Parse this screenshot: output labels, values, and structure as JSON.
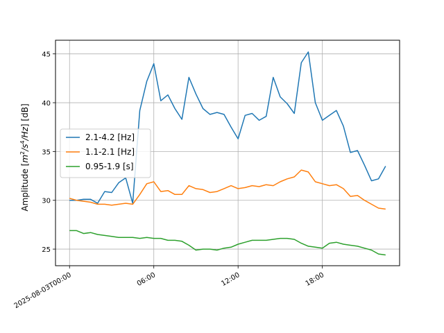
{
  "chart_data": {
    "type": "line",
    "xlabel": "",
    "ylabel": "Amplitude [$m^2/s^4/Hz$] [dB]",
    "ylabel_parts": {
      "pre": "Amplitude [",
      "m": "m",
      "two": "2",
      "s": "/s",
      "four": "4",
      "hz": "/Hz",
      "post": "] [dB]"
    },
    "xlim_hours": [
      -1.0,
      23.5
    ],
    "ylim": [
      23.3,
      46.4
    ],
    "grid": true,
    "legend_position": "center-left",
    "x_ticks": [
      {
        "hour": 0,
        "label": "2025-08-03T00:00"
      },
      {
        "hour": 6,
        "label": "06:00"
      },
      {
        "hour": 12,
        "label": "12:00"
      },
      {
        "hour": 18,
        "label": "18:00"
      }
    ],
    "y_ticks": [
      25,
      30,
      35,
      40,
      45
    ],
    "x_hours": [
      0,
      0.5,
      1,
      1.5,
      2,
      2.5,
      3,
      3.5,
      4,
      4.5,
      5,
      5.5,
      6,
      6.5,
      7,
      7.5,
      8,
      8.5,
      9,
      9.5,
      10,
      10.5,
      11,
      11.5,
      12,
      12.5,
      13,
      13.5,
      14,
      14.5,
      15,
      15.5,
      16,
      16.5,
      17,
      17.5,
      18,
      18.5,
      19,
      19.5,
      20,
      20.5,
      21,
      21.5,
      22,
      22.5
    ],
    "series": [
      {
        "name": "2.1-4.2 [Hz]",
        "color": "#1f77b4",
        "values": [
          30.0,
          30.0,
          30.1,
          30.1,
          29.7,
          30.9,
          30.8,
          31.8,
          32.3,
          29.7,
          39.2,
          42.2,
          44.0,
          40.2,
          40.8,
          39.4,
          38.3,
          42.6,
          40.9,
          39.4,
          38.8,
          39.0,
          38.8,
          37.5,
          36.3,
          38.7,
          38.9,
          38.2,
          38.6,
          42.6,
          40.6,
          39.9,
          38.9,
          44.1,
          45.2,
          40.0,
          38.2,
          38.7,
          39.2,
          37.6,
          34.9,
          35.1,
          33.6,
          32.0,
          32.2,
          33.5
        ]
      },
      {
        "name": "1.1-2.1 [Hz]",
        "color": "#ff7f0e",
        "values": [
          30.2,
          30.0,
          29.9,
          29.8,
          29.6,
          29.6,
          29.5,
          29.6,
          29.7,
          29.6,
          30.6,
          31.7,
          31.9,
          30.9,
          31.0,
          30.6,
          30.6,
          31.5,
          31.2,
          31.1,
          30.8,
          30.9,
          31.2,
          31.5,
          31.2,
          31.3,
          31.5,
          31.4,
          31.6,
          31.5,
          31.9,
          32.2,
          32.4,
          33.1,
          32.9,
          31.9,
          31.7,
          31.5,
          31.6,
          31.2,
          30.4,
          30.5,
          30.0,
          29.6,
          29.2,
          29.1
        ]
      },
      {
        "name": "0.95-1.9 [s]",
        "color": "#2ca02c",
        "values": [
          26.9,
          26.9,
          26.6,
          26.7,
          26.5,
          26.4,
          26.3,
          26.2,
          26.2,
          26.2,
          26.1,
          26.2,
          26.1,
          26.1,
          25.9,
          25.9,
          25.8,
          25.4,
          24.9,
          25.0,
          25.0,
          24.9,
          25.1,
          25.2,
          25.5,
          25.7,
          25.9,
          25.9,
          25.9,
          26.0,
          26.1,
          26.1,
          26.0,
          25.6,
          25.3,
          25.2,
          25.1,
          25.6,
          25.7,
          25.5,
          25.4,
          25.3,
          25.1,
          24.9,
          24.5,
          24.4
        ]
      }
    ]
  }
}
